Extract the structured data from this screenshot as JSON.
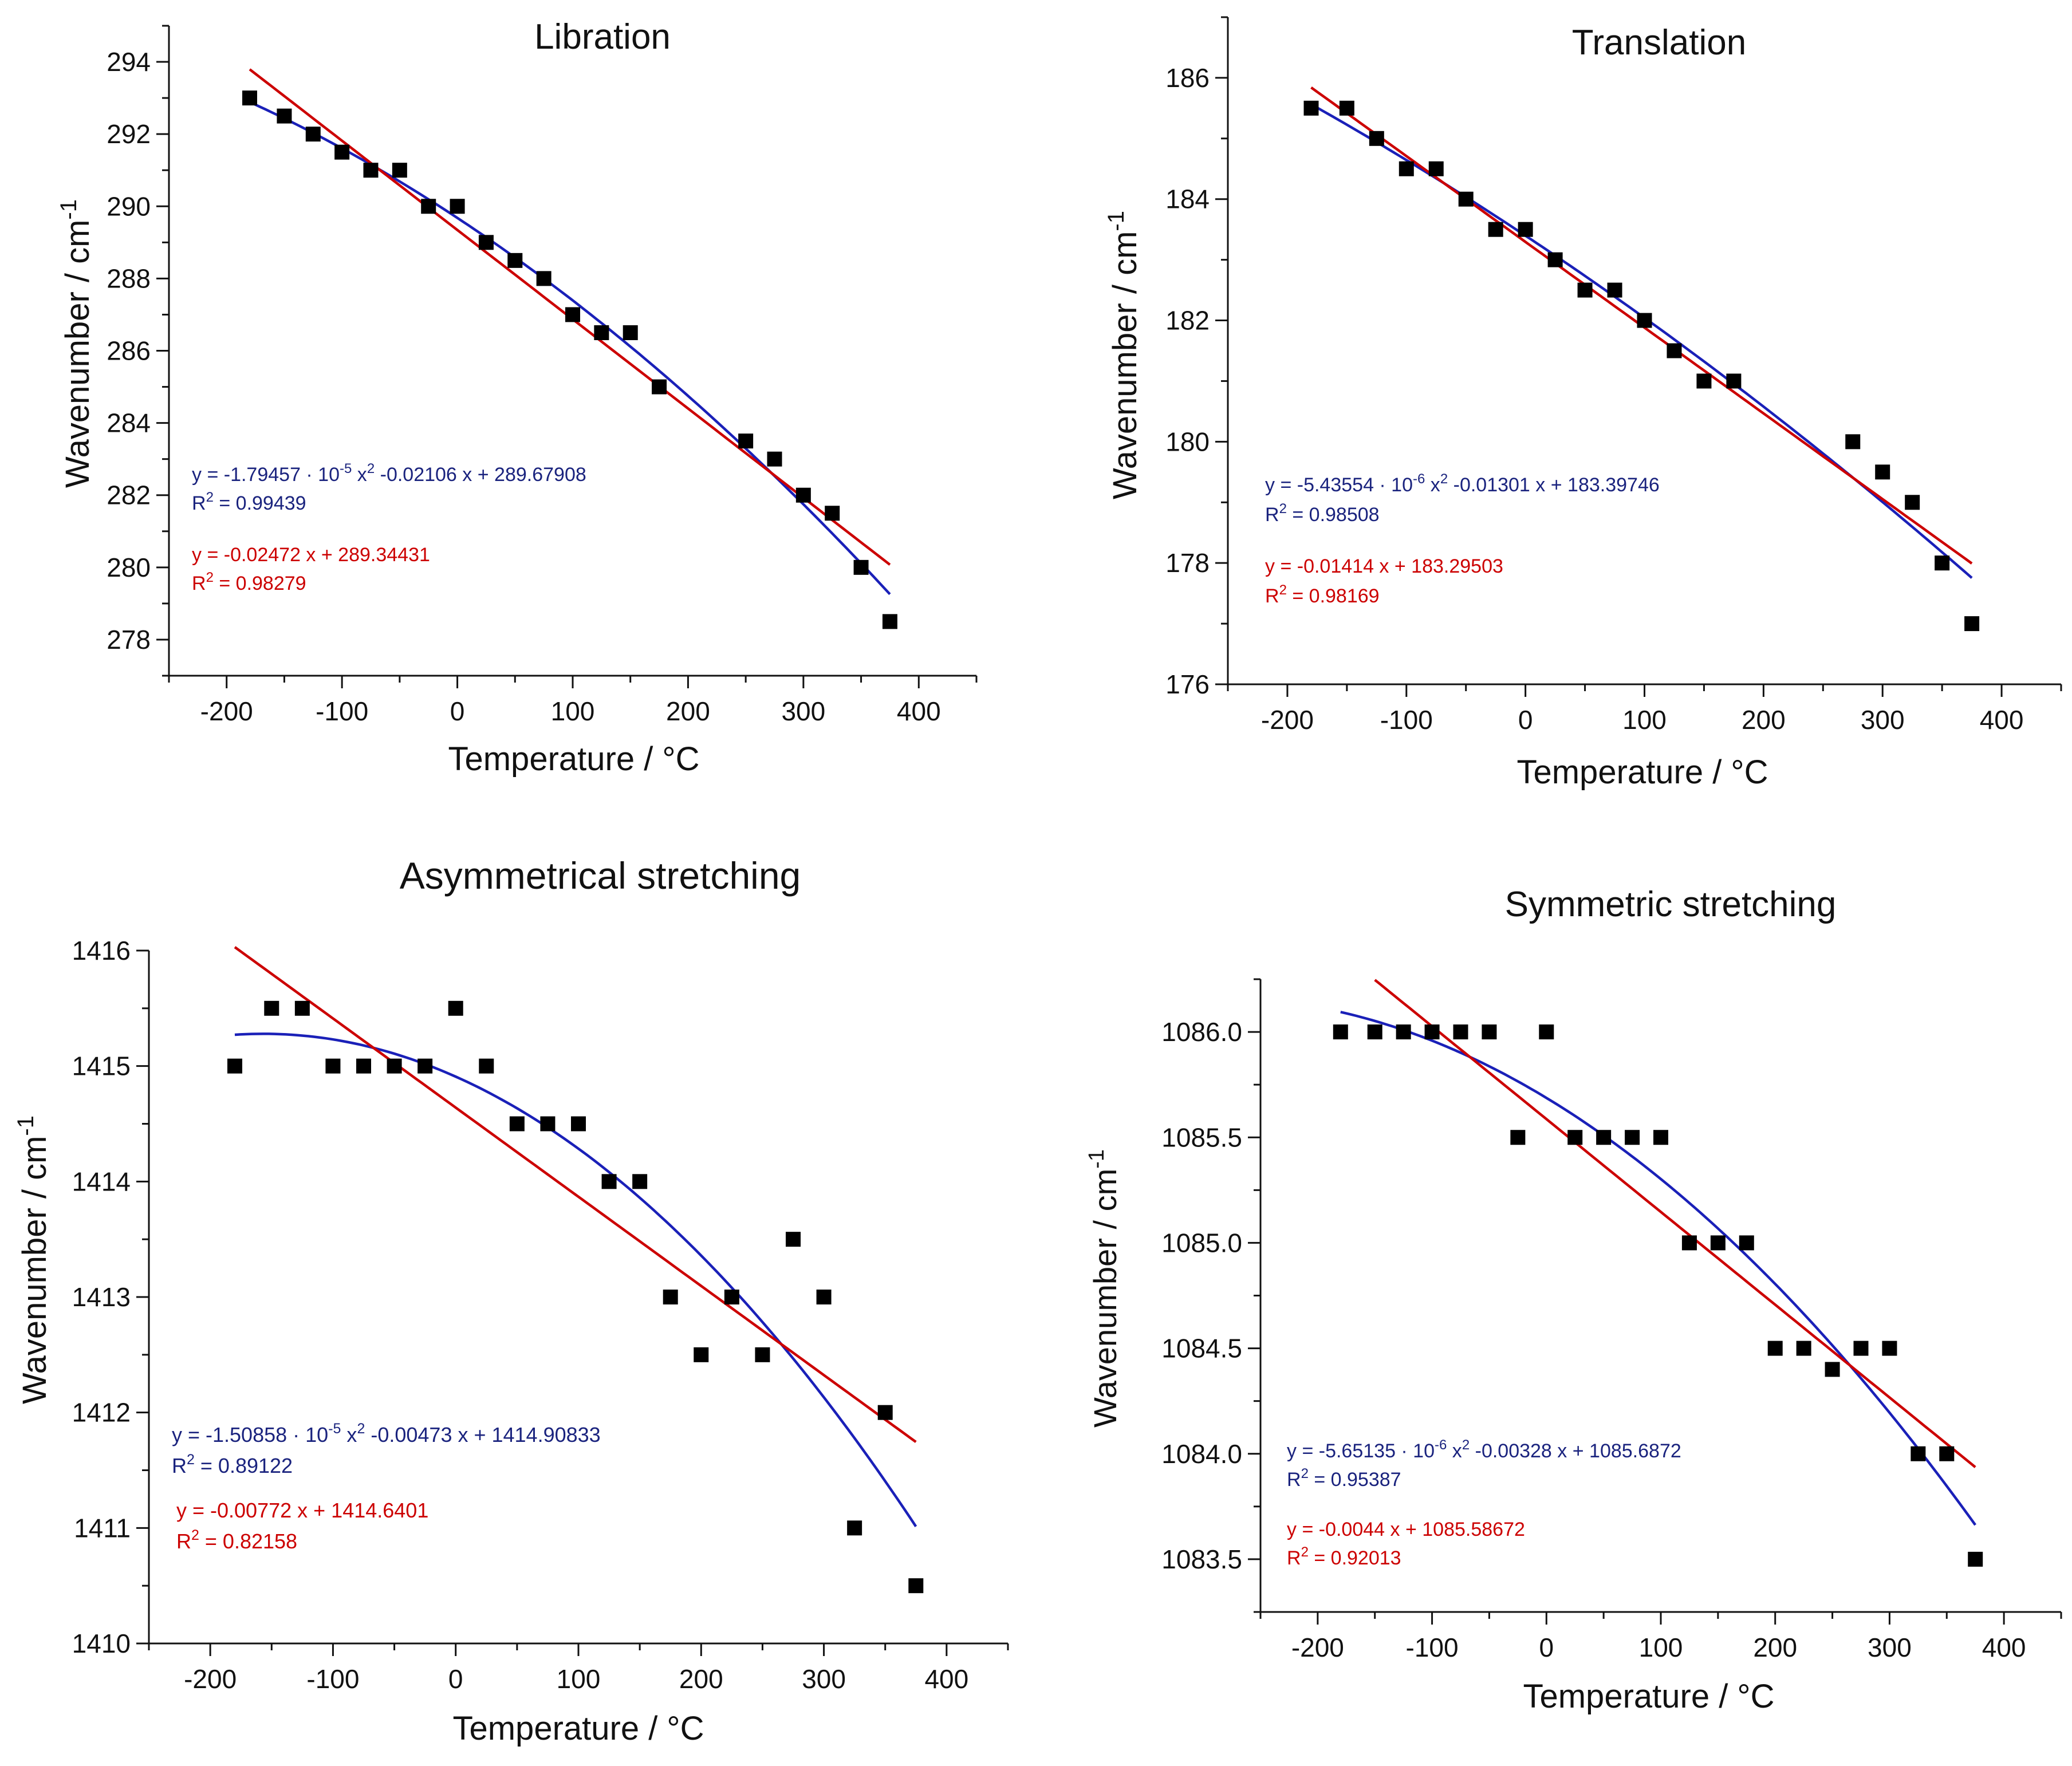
{
  "chart_data": [
    {
      "type": "scatter",
      "title": "Libration",
      "xlabel": "Temperature / °C",
      "ylabel": "Wavenumber / cm⁻¹",
      "xlim": [
        -250,
        450
      ],
      "ylim": [
        277,
        295
      ],
      "xticks": [
        -200,
        -100,
        0,
        100,
        200,
        300,
        400
      ],
      "yticks": [
        278,
        280,
        282,
        284,
        286,
        288,
        290,
        292,
        294
      ],
      "ytick_decimals": 0,
      "points": {
        "x": [
          -180,
          -150,
          -125,
          -100,
          -75,
          -50,
          -25,
          0,
          25,
          50,
          75,
          100,
          125,
          150,
          175,
          250,
          275,
          300,
          325,
          350,
          375
        ],
        "y": [
          293.0,
          292.5,
          292.0,
          291.5,
          291.0,
          291.0,
          290.0,
          290.0,
          289.0,
          288.5,
          288.0,
          287.0,
          286.5,
          286.5,
          285.0,
          283.5,
          283.0,
          282.0,
          281.5,
          280.0,
          278.5
        ]
      },
      "fits": [
        {
          "name": "quadratic",
          "color": "#1a20b8",
          "coeffs": [
            289.67908,
            -0.02106,
            -1.79457e-05
          ],
          "x_range": [
            -180,
            375
          ],
          "equation": "y = -1.79457 · 10⁻⁵ x² -0.02106 x + 289.67908",
          "r2": "R² = 0.99439"
        },
        {
          "name": "linear",
          "color": "#cc0000",
          "coeffs": [
            289.34431,
            -0.02472,
            0
          ],
          "x_range": [
            -180,
            375
          ],
          "equation": "y = -0.02472 x + 289.34431",
          "r2": "R² = 0.98279"
        }
      ]
    },
    {
      "type": "scatter",
      "title": "Translation",
      "xlabel": "Temperature / °C",
      "ylabel": "Wavenumber / cm⁻¹",
      "xlim": [
        -250,
        450
      ],
      "ylim": [
        176,
        187
      ],
      "xticks": [
        -200,
        -100,
        0,
        100,
        200,
        300,
        400
      ],
      "yticks": [
        176,
        178,
        180,
        182,
        184,
        186
      ],
      "ytick_decimals": 0,
      "points": {
        "x": [
          -180,
          -150,
          -125,
          -100,
          -75,
          -50,
          -25,
          0,
          25,
          50,
          75,
          100,
          125,
          150,
          175,
          275,
          300,
          325,
          350,
          375
        ],
        "y": [
          185.5,
          185.5,
          185.0,
          184.5,
          184.5,
          184.0,
          183.5,
          183.5,
          183.0,
          182.5,
          182.5,
          182.0,
          181.5,
          181.0,
          181.0,
          180.0,
          179.5,
          179.0,
          178.0,
          177.0
        ]
      },
      "fits": [
        {
          "name": "quadratic",
          "color": "#1a20b8",
          "coeffs": [
            183.39746,
            -0.01301,
            -5.43554e-06
          ],
          "x_range": [
            -180,
            375
          ],
          "equation": "y = -5.43554 · 10⁻⁶ x² -0.01301 x + 183.39746",
          "r2": "R² = 0.98508"
        },
        {
          "name": "linear",
          "color": "#cc0000",
          "coeffs": [
            183.29503,
            -0.01414,
            0
          ],
          "x_range": [
            -180,
            375
          ],
          "equation": "y = -0.01414 x + 183.29503",
          "r2": "R² = 0.98169"
        }
      ]
    },
    {
      "type": "scatter",
      "title": "Asymmetrical stretching",
      "xlabel": "Temperature / °C",
      "ylabel": "Wavenumber / cm⁻¹",
      "xlim": [
        -250,
        450
      ],
      "ylim": [
        1410,
        1416
      ],
      "xticks": [
        -200,
        -100,
        0,
        100,
        200,
        300,
        400
      ],
      "yticks": [
        1410,
        1411,
        1412,
        1413,
        1414,
        1415,
        1416
      ],
      "ytick_decimals": 0,
      "points": {
        "x": [
          -180,
          -150,
          -125,
          -100,
          -75,
          -50,
          -25,
          0,
          25,
          50,
          75,
          100,
          125,
          150,
          175,
          200,
          225,
          250,
          275,
          300,
          325,
          350,
          375
        ],
        "y": [
          1415.0,
          1415.5,
          1415.5,
          1415.0,
          1415.0,
          1415.0,
          1415.0,
          1415.5,
          1415.0,
          1414.5,
          1414.5,
          1414.5,
          1414.0,
          1414.0,
          1413.0,
          1412.5,
          1413.0,
          1412.5,
          1413.5,
          1413.0,
          1411.0,
          1412.0,
          1410.5
        ]
      },
      "fits": [
        {
          "name": "quadratic",
          "color": "#1a20b8",
          "coeffs": [
            1414.90833,
            -0.00473,
            -1.50858e-05
          ],
          "x_range": [
            -180,
            375
          ],
          "equation": "y = -1.50858 · 10⁻⁵ x² -0.00473 x + 1414.90833",
          "r2": "R² = 0.89122"
        },
        {
          "name": "linear",
          "color": "#cc0000",
          "coeffs": [
            1414.6401,
            -0.00772,
            0
          ],
          "x_range": [
            -180,
            375
          ],
          "equation": "y = -0.00772 x + 1414.6401",
          "r2": "R² = 0.82158"
        }
      ]
    },
    {
      "type": "scatter",
      "title": "Symmetric stretching",
      "xlabel": "Temperature / °C",
      "ylabel": "Wavenumber / cm⁻¹",
      "xlim": [
        -250,
        450
      ],
      "ylim": [
        1083.25,
        1086.25
      ],
      "xticks": [
        -200,
        -100,
        0,
        100,
        200,
        300,
        400
      ],
      "yticks": [
        1083.5,
        1084.0,
        1084.5,
        1085.0,
        1085.5,
        1086.0
      ],
      "ytick_decimals": 1,
      "points": {
        "x": [
          -180,
          -150,
          -125,
          -100,
          -75,
          -50,
          -25,
          0,
          25,
          50,
          75,
          100,
          125,
          150,
          175,
          200,
          225,
          250,
          275,
          300,
          325,
          350,
          375
        ],
        "y": [
          1086.0,
          1086.0,
          1086.0,
          1086.0,
          1086.0,
          1086.0,
          1085.5,
          1086.0,
          1085.5,
          1085.5,
          1085.5,
          1085.5,
          1085.0,
          1085.0,
          1085.0,
          1084.5,
          1084.5,
          1084.4,
          1084.5,
          1084.5,
          1084.0,
          1084.0,
          1083.5
        ]
      },
      "fits": [
        {
          "name": "quadratic",
          "color": "#1a20b8",
          "coeffs": [
            1085.6872,
            -0.00328,
            -5.65135e-06
          ],
          "x_range": [
            -180,
            375
          ],
          "equation": "y = -5.65135 · 10⁻⁶ x² -0.00328 x + 1085.6872",
          "r2": "R² = 0.95387"
        },
        {
          "name": "linear",
          "color": "#cc0000",
          "coeffs": [
            1085.58672,
            -0.0044,
            0
          ],
          "x_range": [
            -150,
            375
          ],
          "equation": "y = -0.0044 x + 1085.58672",
          "r2": "R² = 0.92013"
        }
      ]
    }
  ]
}
